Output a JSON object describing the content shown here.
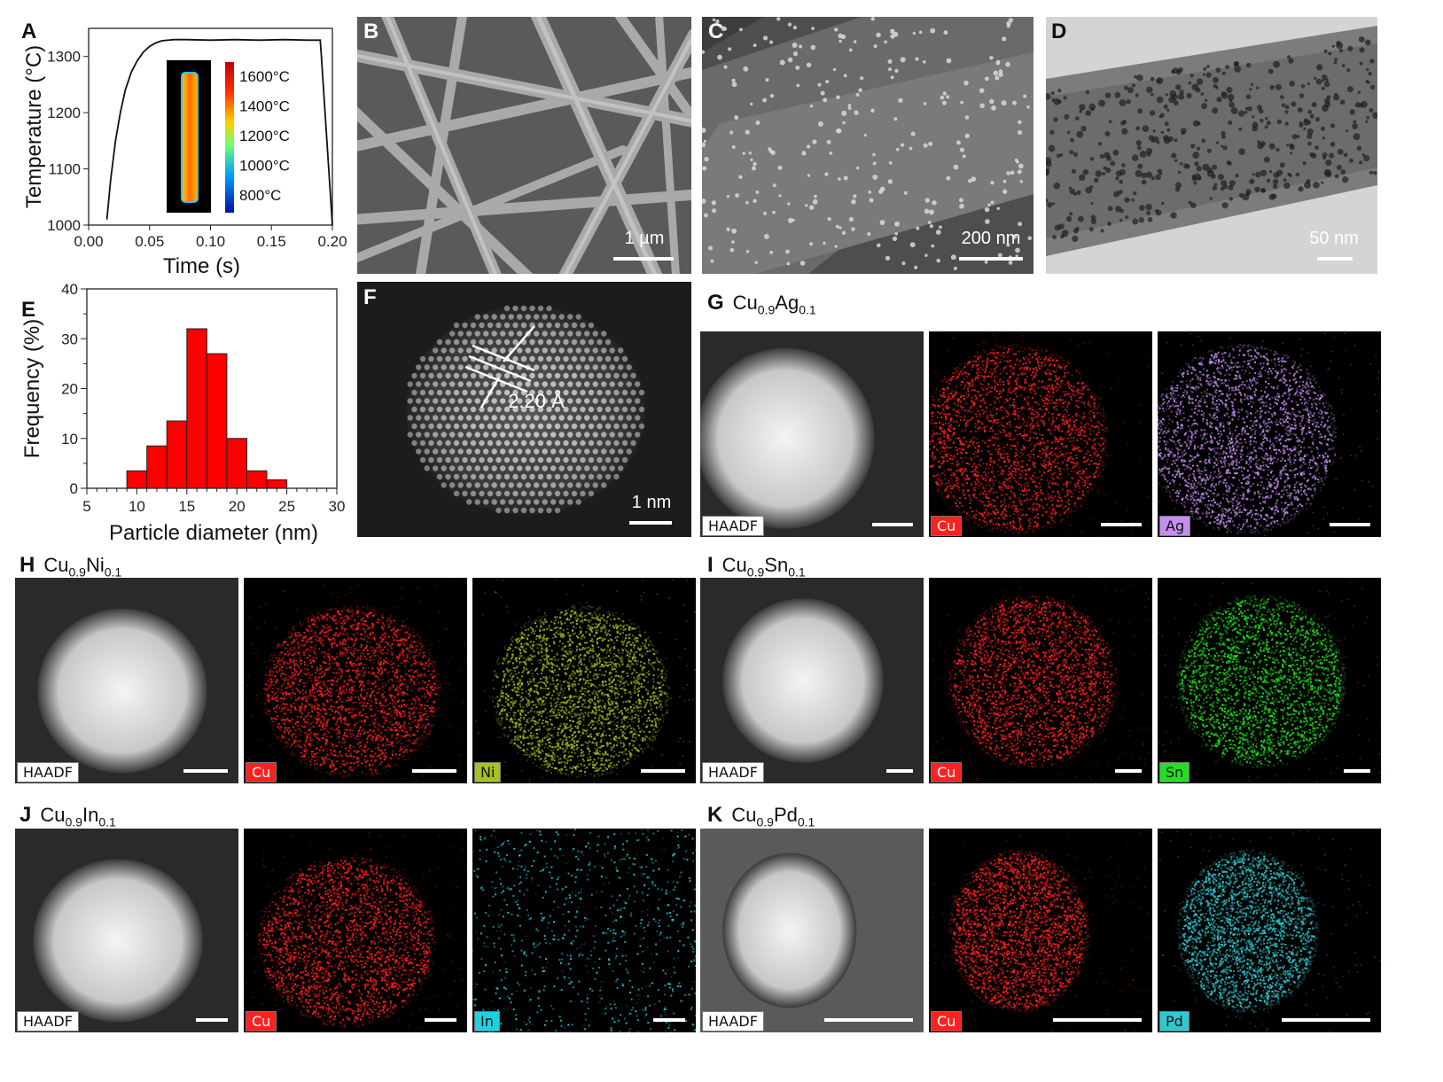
{
  "panels": {
    "A": "A",
    "B": "B",
    "C": "C",
    "D": "D",
    "E": "E",
    "F": "F",
    "G": "G",
    "H": "H",
    "I": "I",
    "J": "J",
    "K": "K"
  },
  "chart_data": [
    {
      "type": "line",
      "panel": "A",
      "xlabel": "Time (s)",
      "ylabel": "Temperature (°C)",
      "xlim": [
        0.0,
        0.2
      ],
      "ylim": [
        1000,
        1350
      ],
      "x_ticks": [
        "0.00",
        "0.05",
        "0.10",
        "0.15",
        "0.20"
      ],
      "y_ticks": [
        "1000",
        "1100",
        "1200",
        "1300"
      ],
      "x": [
        0.015,
        0.018,
        0.022,
        0.026,
        0.03,
        0.035,
        0.04,
        0.045,
        0.05,
        0.055,
        0.06,
        0.07,
        0.08,
        0.1,
        0.12,
        0.14,
        0.16,
        0.18,
        0.19,
        0.191,
        0.2
      ],
      "y": [
        1010,
        1080,
        1150,
        1200,
        1240,
        1272,
        1293,
        1308,
        1318,
        1324,
        1328,
        1330,
        1330,
        1329,
        1330,
        1329,
        1330,
        1329,
        1329,
        1300,
        1000
      ],
      "colorbar_labels": [
        "1600°C",
        "1400°C",
        "1200°C",
        "1000°C",
        "800°C"
      ]
    },
    {
      "type": "bar",
      "panel": "E",
      "xlabel": "Particle diameter (nm)",
      "ylabel": "Frequency (%)",
      "xlim": [
        5,
        30
      ],
      "ylim": [
        0,
        40
      ],
      "x_ticks": [
        "5",
        "10",
        "15",
        "20",
        "25",
        "30"
      ],
      "y_ticks": [
        "0",
        "10",
        "20",
        "30",
        "40"
      ],
      "bin_width": 2,
      "categories": [
        10,
        12,
        14,
        16,
        18,
        20,
        22,
        24
      ],
      "values": [
        3.5,
        8.5,
        13.5,
        32,
        27,
        10,
        3.5,
        1.7
      ],
      "colors": {
        "bar": "#ff0000"
      }
    }
  ],
  "scalebars": {
    "B": "1 µm",
    "C": "200 nm",
    "D": "50 nm",
    "F": "1 nm"
  },
  "F_annotation": "2.20 Å",
  "rows": {
    "G": {
      "letter": "G",
      "base1": "Cu",
      "sub1": "0.9",
      "base2": "Ag",
      "sub2": "0.1",
      "tags": [
        "HAADF",
        "Cu",
        "Ag"
      ]
    },
    "H": {
      "letter": "H",
      "base1": "Cu",
      "sub1": "0.9",
      "base2": "Ni",
      "sub2": "0.1",
      "tags": [
        "HAADF",
        "Cu",
        "Ni"
      ]
    },
    "I": {
      "letter": "I",
      "base1": "Cu",
      "sub1": "0.9",
      "base2": "Sn",
      "sub2": "0.1",
      "tags": [
        "HAADF",
        "Cu",
        "Sn"
      ]
    },
    "J": {
      "letter": "J",
      "base1": "Cu",
      "sub1": "0.9",
      "base2": "In",
      "sub2": "0.1",
      "tags": [
        "HAADF",
        "Cu",
        "In"
      ]
    },
    "K": {
      "letter": "K",
      "base1": "Cu",
      "sub1": "0.9",
      "base2": "Pd",
      "sub2": "0.1",
      "tags": [
        "HAADF",
        "Cu",
        "Pd"
      ]
    }
  },
  "colors": {
    "Cu": "#ff2020",
    "Ag": "#c58ff0",
    "Ni": "#a8c020",
    "Sn": "#20e020",
    "In": "#20d0e0",
    "Pd": "#30c8d0"
  }
}
